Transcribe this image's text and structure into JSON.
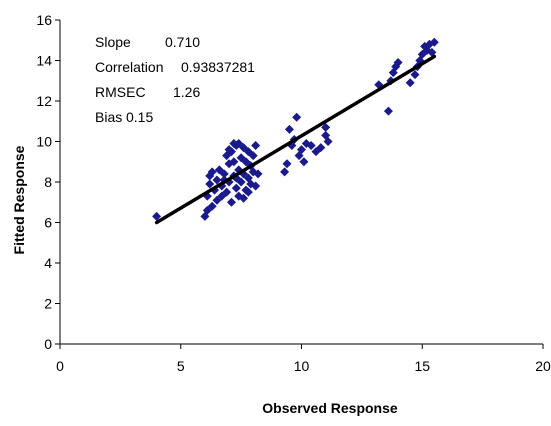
{
  "chart_data": {
    "type": "scatter",
    "title": "",
    "xlabel": "Observed Response",
    "ylabel": "Fitted Response",
    "xlim": [
      0,
      20
    ],
    "ylim": [
      0,
      16
    ],
    "x_ticks": [
      "0",
      "5",
      "10",
      "15",
      "20"
    ],
    "y_ticks": [
      "0",
      "2",
      "4",
      "6",
      "8",
      "10",
      "12",
      "14",
      "16"
    ],
    "grid": false,
    "legend": "none",
    "marker_color": "#1a1a8c",
    "line_color": "#000000",
    "stats": [
      {
        "label": "Slope",
        "value": "0.710"
      },
      {
        "label": "Correlation",
        "value": "0.93837281"
      },
      {
        "label": "RMSEC",
        "value": "1.26"
      },
      {
        "label": "Bias",
        "value": "0.15"
      }
    ],
    "fit_line": {
      "x": [
        4.0,
        15.5
      ],
      "y": [
        6.0,
        14.2
      ]
    },
    "series": [
      {
        "points": [
          [
            4.0,
            6.3
          ],
          [
            6.0,
            6.3
          ],
          [
            6.1,
            6.6
          ],
          [
            6.1,
            7.3
          ],
          [
            6.2,
            7.9
          ],
          [
            6.2,
            8.3
          ],
          [
            6.3,
            6.8
          ],
          [
            6.3,
            8.5
          ],
          [
            6.4,
            7.6
          ],
          [
            6.5,
            7.1
          ],
          [
            6.5,
            8.1
          ],
          [
            6.6,
            8.6
          ],
          [
            6.7,
            7.3
          ],
          [
            6.7,
            7.8
          ],
          [
            6.8,
            8.4
          ],
          [
            6.9,
            7.5
          ],
          [
            7.0,
            8.0
          ],
          [
            7.0,
            8.9
          ],
          [
            7.1,
            9.5
          ],
          [
            7.1,
            7.0
          ],
          [
            7.2,
            8.3
          ],
          [
            7.2,
            9.0
          ],
          [
            7.3,
            7.7
          ],
          [
            7.3,
            9.8
          ],
          [
            7.4,
            8.6
          ],
          [
            7.4,
            7.3
          ],
          [
            7.5,
            9.2
          ],
          [
            7.5,
            8.0
          ],
          [
            7.6,
            9.7
          ],
          [
            7.6,
            8.4
          ],
          [
            7.7,
            7.6
          ],
          [
            7.7,
            9.0
          ],
          [
            7.8,
            8.2
          ],
          [
            7.8,
            9.5
          ],
          [
            7.9,
            8.8
          ],
          [
            7.9,
            7.9
          ],
          [
            8.0,
            9.3
          ],
          [
            8.0,
            8.5
          ],
          [
            8.1,
            7.8
          ],
          [
            8.1,
            9.8
          ],
          [
            8.2,
            8.4
          ],
          [
            6.9,
            9.3
          ],
          [
            7.0,
            9.6
          ],
          [
            7.2,
            9.9
          ],
          [
            7.4,
            9.9
          ],
          [
            7.6,
            7.2
          ],
          [
            7.8,
            7.5
          ],
          [
            6.8,
            8.1
          ],
          [
            7.3,
            8.2
          ],
          [
            9.3,
            8.5
          ],
          [
            9.4,
            8.9
          ],
          [
            9.5,
            10.6
          ],
          [
            9.6,
            9.8
          ],
          [
            9.7,
            10.1
          ],
          [
            9.8,
            11.2
          ],
          [
            9.9,
            9.3
          ],
          [
            10.0,
            9.6
          ],
          [
            10.1,
            9.0
          ],
          [
            10.2,
            9.9
          ],
          [
            10.4,
            9.8
          ],
          [
            10.6,
            9.5
          ],
          [
            10.8,
            9.7
          ],
          [
            11.0,
            10.3
          ],
          [
            11.1,
            10.0
          ],
          [
            11.0,
            10.7
          ],
          [
            13.2,
            12.8
          ],
          [
            13.6,
            11.5
          ],
          [
            13.7,
            13.0
          ],
          [
            13.8,
            13.4
          ],
          [
            13.9,
            13.7
          ],
          [
            14.0,
            13.9
          ],
          [
            14.5,
            12.9
          ],
          [
            14.7,
            13.3
          ],
          [
            14.8,
            13.7
          ],
          [
            14.9,
            14.0
          ],
          [
            15.0,
            14.3
          ],
          [
            15.1,
            14.7
          ],
          [
            15.2,
            14.5
          ],
          [
            15.3,
            14.8
          ],
          [
            15.5,
            14.9
          ],
          [
            15.4,
            14.4
          ]
        ]
      }
    ]
  }
}
